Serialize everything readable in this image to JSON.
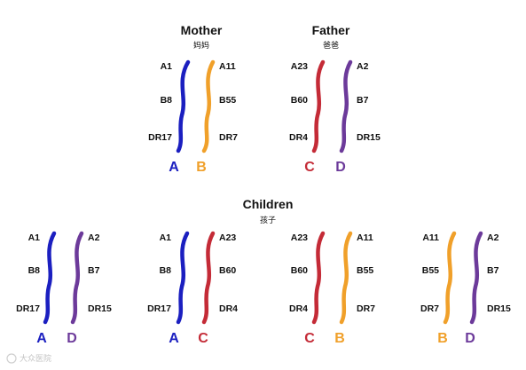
{
  "colors": {
    "A": "#1b1fc0",
    "B": "#f0a02a",
    "C": "#c42b37",
    "D": "#6c3a9a"
  },
  "titles": {
    "mother": "Mother",
    "mother_sub": "妈妈",
    "father": "Father",
    "father_sub": "爸爸",
    "children": "Children",
    "children_sub": "孩子"
  },
  "parents": {
    "mother": {
      "left": {
        "letter": "A",
        "color": "A",
        "alleles": [
          "A1",
          "B8",
          "DR17"
        ]
      },
      "right": {
        "letter": "B",
        "color": "B",
        "alleles": [
          "A11",
          "B55",
          "DR7"
        ]
      }
    },
    "father": {
      "left": {
        "letter": "C",
        "color": "C",
        "alleles": [
          "A23",
          "B60",
          "DR4"
        ]
      },
      "right": {
        "letter": "D",
        "color": "D",
        "alleles": [
          "A2",
          "B7",
          "DR15"
        ]
      }
    }
  },
  "children": [
    {
      "left": {
        "letter": "A",
        "color": "A",
        "alleles": [
          "A1",
          "B8",
          "DR17"
        ]
      },
      "right": {
        "letter": "D",
        "color": "D",
        "alleles": [
          "A2",
          "B7",
          "DR15"
        ]
      }
    },
    {
      "left": {
        "letter": "A",
        "color": "A",
        "alleles": [
          "A1",
          "B8",
          "DR17"
        ]
      },
      "right": {
        "letter": "C",
        "color": "C",
        "alleles": [
          "A23",
          "B60",
          "DR4"
        ]
      }
    },
    {
      "left": {
        "letter": "C",
        "color": "C",
        "alleles": [
          "A23",
          "B60",
          "DR4"
        ]
      },
      "right": {
        "letter": "B",
        "color": "B",
        "alleles": [
          "A11",
          "B55",
          "DR7"
        ]
      }
    },
    {
      "left": {
        "letter": "B",
        "color": "B",
        "alleles": [
          "A11",
          "B55",
          "DR7"
        ]
      },
      "right": {
        "letter": "D",
        "color": "D",
        "alleles": [
          "A2",
          "B7",
          "DR15"
        ]
      }
    }
  ],
  "watermark": "大众医院"
}
